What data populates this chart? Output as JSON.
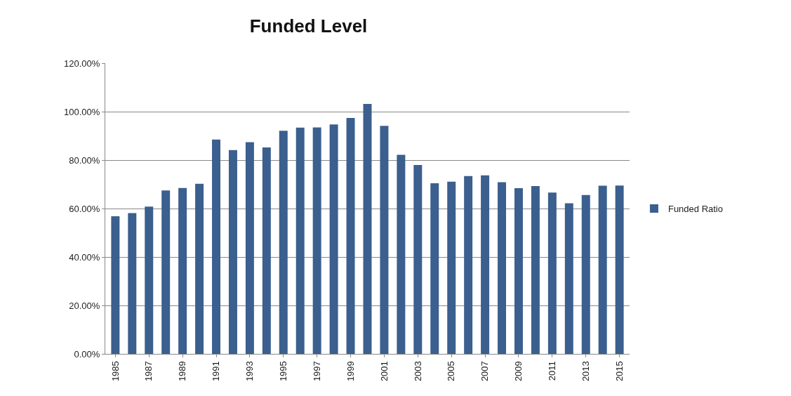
{
  "chart_data": {
    "type": "bar",
    "title": "Funded Level",
    "categories": [
      "1985",
      null,
      "1987",
      null,
      "1989",
      null,
      "1991",
      null,
      "1993",
      null,
      "1995",
      null,
      "1997",
      null,
      "1999",
      null,
      "2001",
      null,
      "2003",
      null,
      "2005",
      null,
      "2007",
      null,
      "2009",
      null,
      "2011",
      null,
      "2013",
      null,
      "2015"
    ],
    "series": [
      {
        "name": "Funded Ratio",
        "color": "#3b5f8e",
        "values": [
          56.8,
          58.1,
          60.8,
          67.5,
          68.5,
          70.2,
          88.5,
          84.1,
          87.4,
          85.2,
          92.1,
          93.4,
          93.5,
          94.7,
          97.4,
          103.2,
          94.1,
          82.2,
          78.0,
          70.4,
          71.1,
          73.4,
          73.7,
          70.9,
          68.4,
          69.3,
          66.6,
          62.2,
          65.6,
          69.4,
          69.5
        ]
      }
    ],
    "ylim": [
      0,
      120
    ],
    "yticks": [
      {
        "value": 0,
        "label": "0.00%"
      },
      {
        "value": 20,
        "label": "20.00%"
      },
      {
        "value": 40,
        "label": "40.00%"
      },
      {
        "value": 60,
        "label": "60.00%"
      },
      {
        "value": 80,
        "label": "80.00%"
      },
      {
        "value": 100,
        "label": "100.00%"
      },
      {
        "value": 120,
        "label": "120.00%"
      }
    ],
    "grid": "y",
    "legend": "right"
  }
}
